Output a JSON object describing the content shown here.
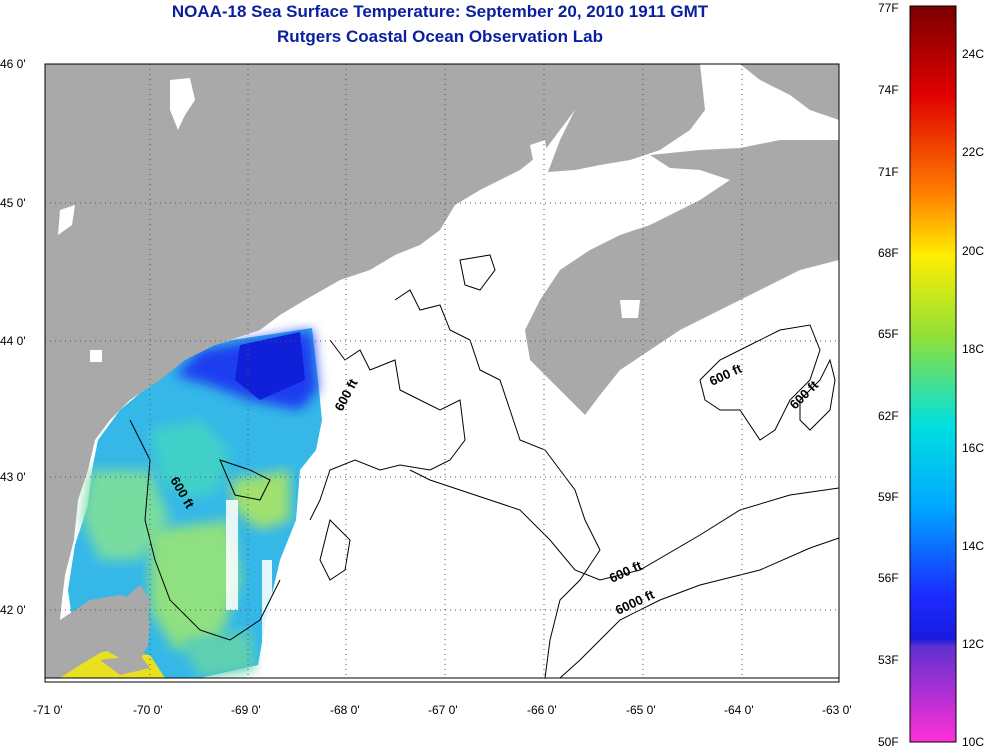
{
  "title": "NOAA-18 Sea Surface Temperature:  September 20, 2010 1911 GMT",
  "subtitle": "Rutgers Coastal Ocean Observation Lab",
  "lat_labels": [
    "46 0'",
    "45 0'",
    "44 0'",
    "43 0'",
    "42 0'"
  ],
  "lon_labels": [
    "-71 0'",
    "-70 0'",
    "-69 0'",
    "-68 0'",
    "-67 0'",
    "-66 0'",
    "-65 0'",
    "-64 0'",
    "-63 0'"
  ],
  "contour_labels": [
    "600 ft",
    "600 ft",
    "600 ft",
    "600 ft",
    "600 ft",
    "6000 ft"
  ],
  "colorbar": {
    "fahrenheit": [
      "77F",
      "74F",
      "71F",
      "68F",
      "65F",
      "62F",
      "59F",
      "56F",
      "53F",
      "50F"
    ],
    "celsius": [
      "24C",
      "22C",
      "20C",
      "18C",
      "16C",
      "14C",
      "12C",
      "10C"
    ]
  },
  "colors": {
    "title": "#0a1fa0",
    "land": "#a9a9a9",
    "ocean_no_data": "#ffffff"
  }
}
